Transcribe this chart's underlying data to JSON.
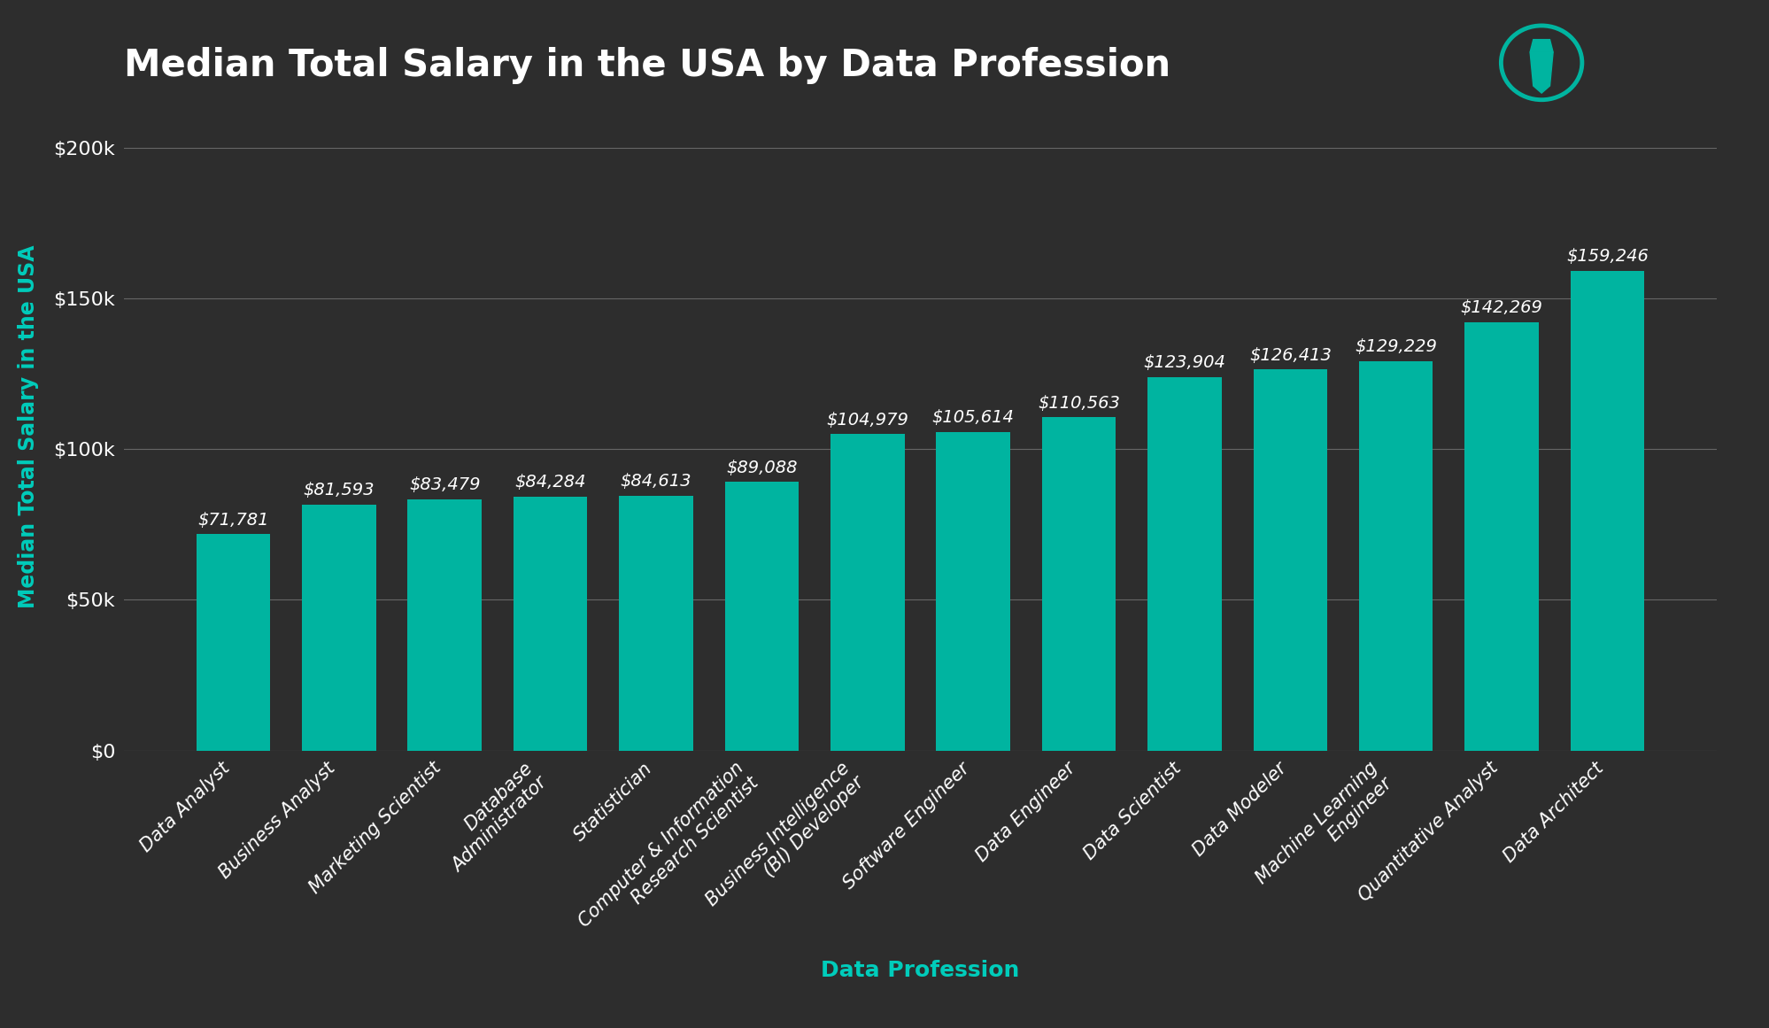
{
  "title": "Median Total Salary in the USA by Data Profession",
  "xlabel": "Data Profession",
  "ylabel": "Median Total Salary in the USA",
  "background_color": "#2d2d2d",
  "bar_color": "#00b4a0",
  "text_color": "#ffffff",
  "xlabel_color": "#00ccbb",
  "ylabel_color": "#00ccbb",
  "grid_color": "#666666",
  "categories": [
    "Data Analyst",
    "Business Analyst",
    "Marketing Scientist",
    "Database\nAdministrator",
    "Statistician",
    "Computer & Information\nResearch Scientist",
    "Business Intelligence\n(BI) Developer",
    "Software Engineer",
    "Data Engineer",
    "Data Scientist",
    "Data Modeler",
    "Machine Learning\nEngineer",
    "Quantitative Analyst",
    "Data Architect"
  ],
  "values": [
    71781,
    81593,
    83479,
    84284,
    84613,
    89088,
    104979,
    105614,
    110563,
    123904,
    126413,
    129229,
    142269,
    159246
  ],
  "value_labels": [
    "$71,781",
    "$81,593",
    "$83,479",
    "$84,284",
    "$84,613",
    "$89,088",
    "$104,979",
    "$105,614",
    "$110,563",
    "$123,904",
    "$126,413",
    "$129,229",
    "$142,269",
    "$159,246"
  ],
  "ytick_labels": [
    "$0",
    "$50k",
    "$100k",
    "$150k",
    "$200k"
  ],
  "ytick_values": [
    0,
    50000,
    100000,
    150000,
    200000
  ],
  "ylim": [
    0,
    215000
  ],
  "title_fontsize": 30,
  "label_fontsize": 15,
  "tick_fontsize": 16,
  "value_label_fontsize": 14
}
